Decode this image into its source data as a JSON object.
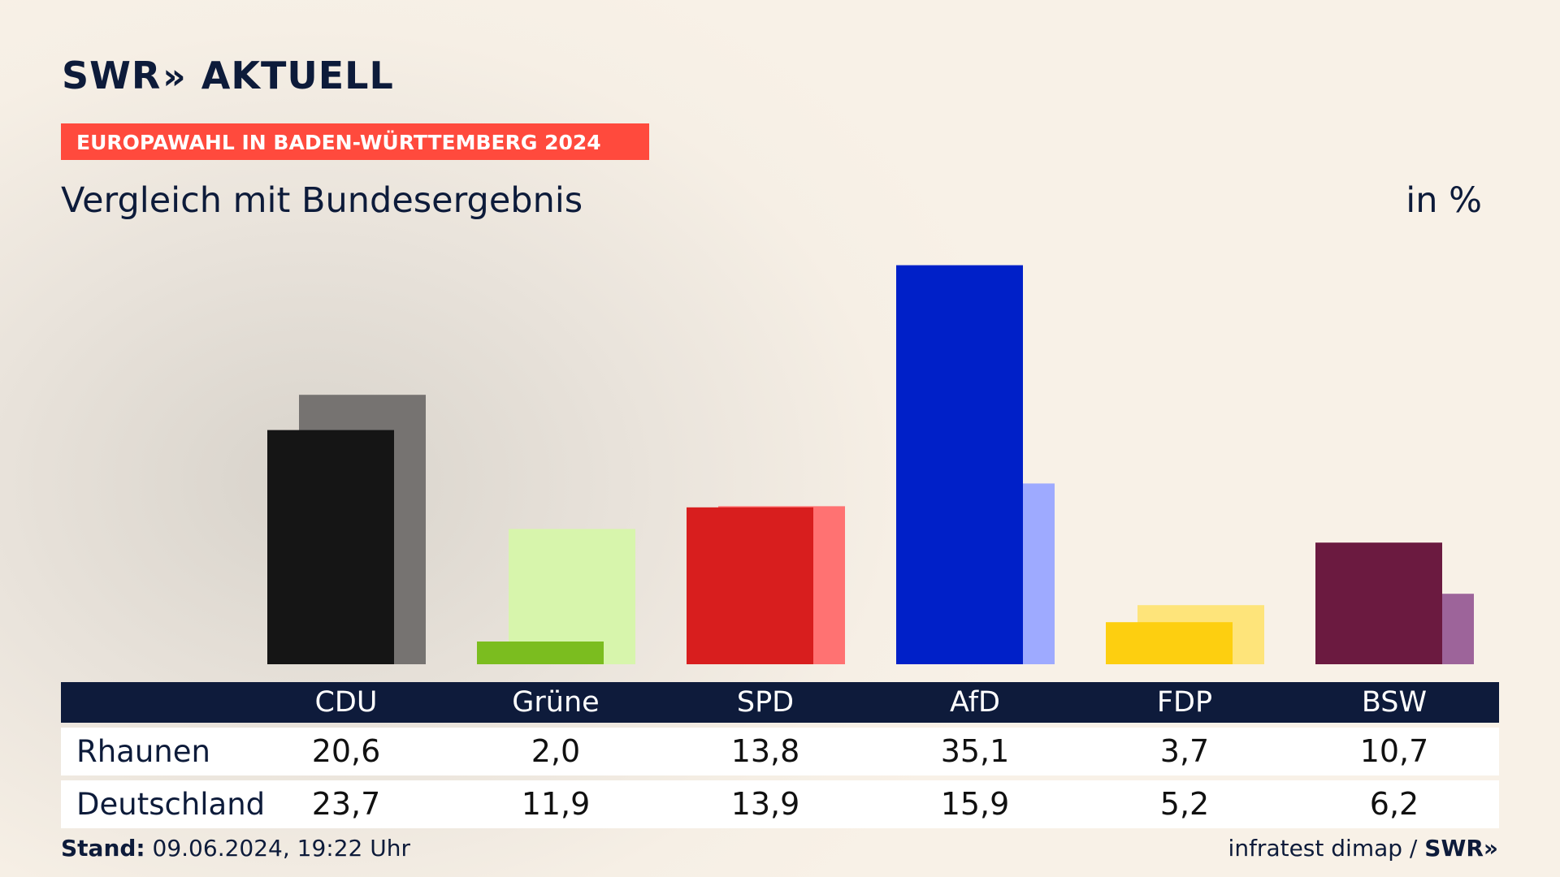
{
  "header": {
    "brand": "SWR",
    "brand_chevron": "»",
    "brand_suffix": "AKTUELL",
    "banner": "EUROPAWAHL IN BADEN-WÜRTTEMBERG 2024",
    "subtitle": "Vergleich mit Bundesergebnis",
    "unit": "in %"
  },
  "colors": {
    "banner": "#ff4a3d",
    "table_header": "#0e1b3b"
  },
  "chart_data": {
    "type": "bar",
    "title": "Vergleich mit Bundesergebnis",
    "unit": "in %",
    "categories": [
      "CDU",
      "Grüne",
      "SPD",
      "AfD",
      "FDP",
      "BSW"
    ],
    "series": [
      {
        "name": "Rhaunen",
        "values": [
          "20,6",
          "2,0",
          "13,8",
          "35,1",
          "3,7",
          "10,7"
        ],
        "colors": [
          "#151515",
          "#7bbd1f",
          "#d81e1e",
          "#0020c8",
          "#fdcf10",
          "#6b1a40"
        ]
      },
      {
        "name": "Deutschland",
        "values": [
          "23,7",
          "11,9",
          "13,9",
          "15,9",
          "5,2",
          "6,2"
        ],
        "colors": [
          "#767371",
          "#d7f5ac",
          "#ff7272",
          "#9eaaff",
          "#fee47a",
          "#9d649a"
        ]
      }
    ],
    "ylim": [
      0,
      36
    ],
    "grid": false
  },
  "footer": {
    "stand_label": "Stand:",
    "stand_value": "09.06.2024, 19:22 Uhr",
    "source": "infratest dimap /",
    "source_brand": "SWR",
    "source_chevron": "»"
  }
}
